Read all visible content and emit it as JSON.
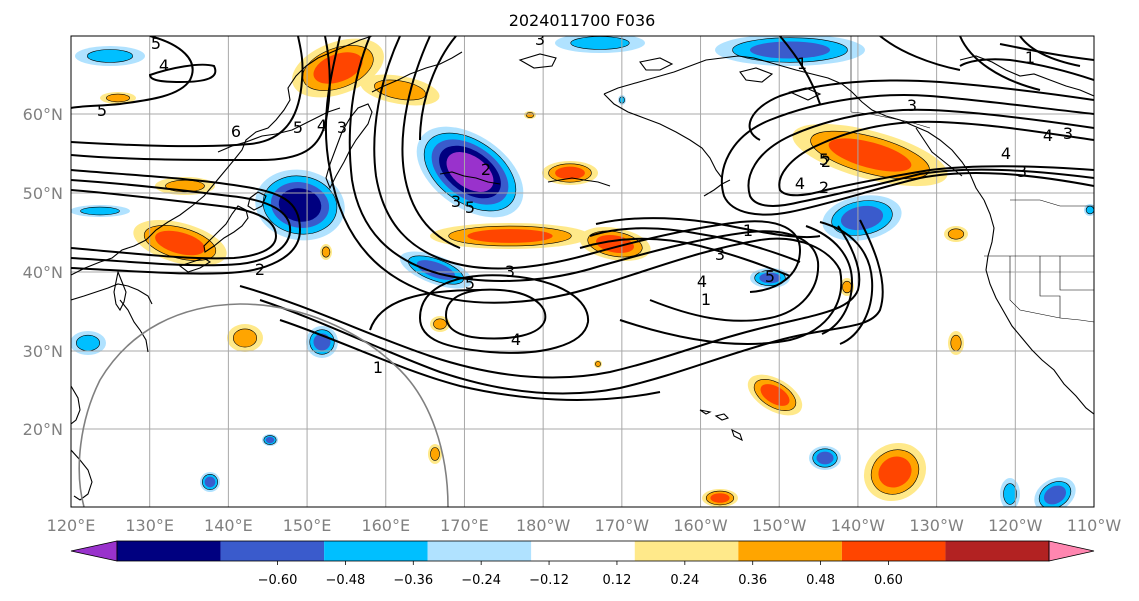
{
  "title": "2024011700 F036",
  "map": {
    "lon_labels": [
      "120°E",
      "130°E",
      "140°E",
      "150°E",
      "160°E",
      "170°E",
      "180°W",
      "170°W",
      "160°W",
      "150°W",
      "140°W",
      "130°W",
      "120°W",
      "110°W"
    ],
    "lat_labels": [
      "20°N",
      "30°N",
      "40°N",
      "50°N",
      "60°N"
    ],
    "contour_labels": [
      {
        "text": "5"
      },
      {
        "text": "4"
      },
      {
        "text": "5"
      },
      {
        "text": "5"
      },
      {
        "text": "4"
      },
      {
        "text": "3"
      },
      {
        "text": "6"
      },
      {
        "text": "3"
      },
      {
        "text": "2"
      },
      {
        "text": "3"
      },
      {
        "text": "5"
      },
      {
        "text": "4"
      },
      {
        "text": "1"
      },
      {
        "text": "3"
      },
      {
        "text": "4"
      },
      {
        "text": "5"
      },
      {
        "text": "2"
      },
      {
        "text": "1"
      },
      {
        "text": "1"
      },
      {
        "text": "3"
      },
      {
        "text": "5"
      },
      {
        "text": "4"
      },
      {
        "text": "2"
      },
      {
        "text": "1"
      },
      {
        "text": "4"
      },
      {
        "text": "3"
      },
      {
        "text": "4"
      },
      {
        "text": "3"
      },
      {
        "text": "2"
      },
      {
        "text": "1"
      },
      {
        "text": "3"
      },
      {
        "text": "5"
      }
    ]
  },
  "colorbar": {
    "ticks": [
      "−0.60",
      "−0.48",
      "−0.36",
      "−0.24",
      "−0.12",
      "0.12",
      "0.24",
      "0.36",
      "0.48",
      "0.60"
    ],
    "colors": [
      "#9932cc",
      "#000080",
      "#3a5bcc",
      "#00bfff",
      "#b0e2ff",
      "#ffffff",
      "#ffe98a",
      "#ffa500",
      "#ff4500",
      "#b22222",
      "#ff86b0"
    ],
    "extend": "both"
  },
  "fill_colors": {
    "neg1": "#b0e2ff",
    "neg2": "#00bfff",
    "neg3": "#3a5bcc",
    "neg4": "#000080",
    "neg5": "#9932cc",
    "pos1": "#ffe98a",
    "pos2": "#ffa500",
    "pos3": "#ff4500",
    "pos4": "#b22222"
  }
}
